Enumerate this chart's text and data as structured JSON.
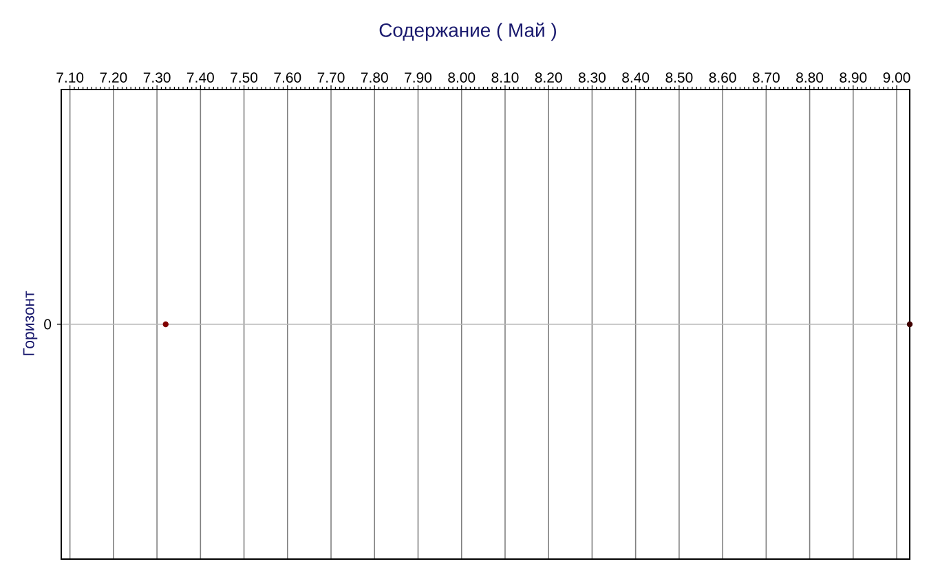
{
  "chart_data": {
    "type": "scatter",
    "orientation": "horizontal",
    "title": "Содержание    ( Май )",
    "ylabel": "Горизонт",
    "categories": [
      "0"
    ],
    "series": [
      {
        "color": "#800000",
        "values": [
          7.32
        ]
      },
      {
        "color": "#400000",
        "values": [
          9.03
        ]
      }
    ],
    "xlim": [
      7.08,
      9.03
    ],
    "xticks": [
      {
        "value": 7.1,
        "label": "7.10"
      },
      {
        "value": 7.2,
        "label": "7.20"
      },
      {
        "value": 7.3,
        "label": "7.30"
      },
      {
        "value": 7.4,
        "label": "7.40"
      },
      {
        "value": 7.5,
        "label": "7.50"
      },
      {
        "value": 7.6,
        "label": "7.60"
      },
      {
        "value": 7.7,
        "label": "7.70"
      },
      {
        "value": 7.8,
        "label": "7.80"
      },
      {
        "value": 7.9,
        "label": "7.90"
      },
      {
        "value": 8,
        "label": "8.00"
      },
      {
        "value": 8.1,
        "label": "8.10"
      },
      {
        "value": 8.2,
        "label": "8.20"
      },
      {
        "value": 8.3,
        "label": "8.30"
      },
      {
        "value": 8.4,
        "label": "8.40"
      },
      {
        "value": 8.5,
        "label": "8.50"
      },
      {
        "value": 8.6,
        "label": "8.60"
      },
      {
        "value": 8.7,
        "label": "8.70"
      },
      {
        "value": 8.8,
        "label": "8.80"
      },
      {
        "value": 8.9,
        "label": "8.90"
      },
      {
        "value": 9,
        "label": "9.00"
      }
    ],
    "grid": true,
    "marker": "circle"
  }
}
